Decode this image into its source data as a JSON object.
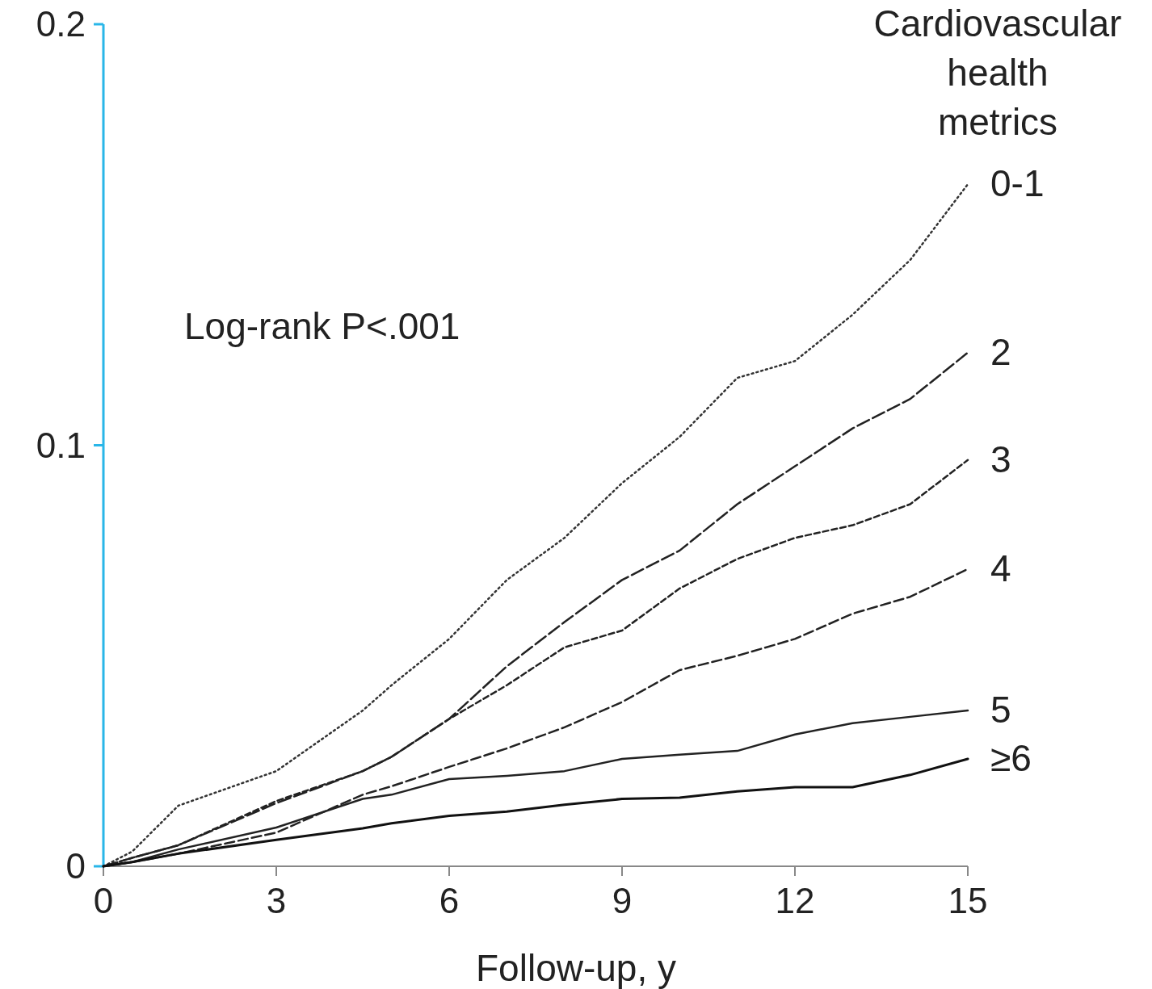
{
  "chart_data": {
    "type": "line",
    "legend_title": "Cardiovascular health metrics",
    "xlabel": "Follow-up, y",
    "annotations": [
      "Log-rank P<.001"
    ],
    "xlim": [
      0,
      15
    ],
    "ylim": [
      0,
      0.2
    ],
    "xticks": [
      0,
      3,
      6,
      9,
      12,
      15
    ],
    "yticks": [
      0,
      0.1,
      0.2
    ],
    "grid": false,
    "x": [
      0,
      0.5,
      1.3,
      3,
      4.5,
      5,
      6,
      7,
      8,
      9,
      10,
      11,
      12,
      13,
      14,
      15
    ],
    "series": [
      {
        "name": "0-1",
        "color": "#333333",
        "line_style": "dotted",
        "values": [
          0,
          0.0035,
          0.0144,
          0.0226,
          0.037,
          0.043,
          0.054,
          0.068,
          0.078,
          0.091,
          0.102,
          0.116,
          0.12,
          0.131,
          0.144,
          0.162
        ]
      },
      {
        "name": "2",
        "color": "#222222",
        "line_style": "dashed",
        "values": [
          0,
          0.002,
          0.005,
          0.015,
          0.0226,
          0.026,
          0.035,
          0.0475,
          0.058,
          0.068,
          0.075,
          0.086,
          0.095,
          0.104,
          0.111,
          0.122
        ]
      },
      {
        "name": "3",
        "color": "#222222",
        "line_style": "dashed",
        "values": [
          0,
          0.002,
          0.005,
          0.0155,
          0.0226,
          0.026,
          0.035,
          0.043,
          0.052,
          0.056,
          0.066,
          0.073,
          0.078,
          0.081,
          0.086,
          0.0965
        ]
      },
      {
        "name": "4",
        "color": "#222222",
        "line_style": "dashed",
        "values": [
          0,
          0.001,
          0.003,
          0.008,
          0.017,
          0.019,
          0.0236,
          0.028,
          0.033,
          0.039,
          0.0466,
          0.05,
          0.054,
          0.06,
          0.064,
          0.0706
        ]
      },
      {
        "name": "5",
        "color": "#222222",
        "line_style": "solid",
        "values": [
          0,
          0.001,
          0.004,
          0.0092,
          0.016,
          0.017,
          0.0207,
          0.0215,
          0.0226,
          0.0255,
          0.0265,
          0.0274,
          0.0313,
          0.034,
          0.0355,
          0.037
        ]
      },
      {
        "name": "≥6",
        "color": "#111111",
        "line_style": "solid",
        "values": [
          0,
          0.001,
          0.003,
          0.0063,
          0.009,
          0.0102,
          0.012,
          0.013,
          0.0146,
          0.016,
          0.0163,
          0.0178,
          0.0188,
          0.0188,
          0.0217,
          0.0255
        ]
      }
    ]
  }
}
